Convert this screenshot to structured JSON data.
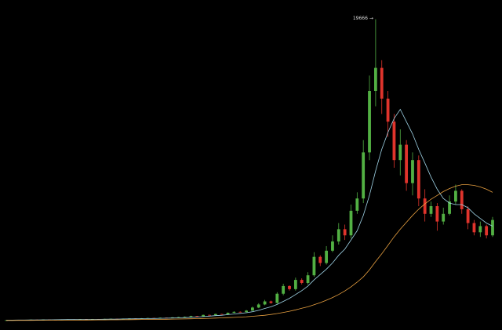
{
  "chart_data": {
    "type": "candlestick",
    "annotation": "19666 →",
    "up_color": "#52b043",
    "down_color": "#e0342c",
    "ylim": [
      0,
      20000
    ],
    "open": [
      75,
      80,
      90,
      85,
      100,
      110,
      105,
      120,
      115,
      110,
      125,
      130,
      125,
      140,
      135,
      150,
      145,
      160,
      170,
      165,
      180,
      190,
      185,
      200,
      220,
      210,
      240,
      230,
      260,
      280,
      300,
      350,
      330,
      420,
      400,
      480,
      450,
      560,
      620,
      600,
      700,
      900,
      1100,
      1300,
      1200,
      1800,
      2300,
      2100,
      2700,
      2500,
      3000,
      4200,
      3800,
      4600,
      5200,
      6000,
      5600,
      7200,
      8000,
      11000,
      15000,
      16500,
      14500,
      13000,
      10500,
      11500,
      9000,
      10500,
      8000,
      7000,
      7500,
      6500,
      7000,
      7800,
      8500,
      7300,
      6400,
      5800,
      6200,
      5600
    ],
    "high": [
      85,
      95,
      95,
      105,
      115,
      115,
      125,
      125,
      120,
      130,
      135,
      135,
      145,
      145,
      155,
      155,
      165,
      180,
      175,
      185,
      200,
      195,
      210,
      230,
      230,
      250,
      250,
      270,
      300,
      320,
      370,
      360,
      440,
      440,
      500,
      490,
      580,
      660,
      650,
      740,
      960,
      1180,
      1400,
      1350,
      1900,
      2450,
      2350,
      2850,
      2800,
      3200,
      4500,
      4300,
      4900,
      5600,
      6400,
      6300,
      7600,
      8400,
      11800,
      16000,
      19666,
      17000,
      15000,
      13500,
      12500,
      11800,
      11000,
      10800,
      8600,
      7800,
      7700,
      7400,
      8200,
      8900,
      8600,
      7500,
      6600,
      6500,
      6300,
      6800
    ],
    "low": [
      70,
      75,
      80,
      80,
      95,
      100,
      100,
      110,
      105,
      105,
      120,
      120,
      120,
      130,
      130,
      140,
      140,
      155,
      160,
      160,
      175,
      180,
      180,
      195,
      200,
      200,
      220,
      225,
      250,
      270,
      290,
      320,
      320,
      390,
      390,
      440,
      440,
      540,
      580,
      590,
      680,
      860,
      1050,
      1150,
      1150,
      1700,
      2000,
      2000,
      2400,
      2400,
      2900,
      3600,
      3700,
      4500,
      5000,
      5300,
      5400,
      7000,
      7700,
      10500,
      14000,
      13500,
      12000,
      10000,
      9500,
      8500,
      8200,
      7500,
      6500,
      6800,
      5900,
      6300,
      6900,
      7600,
      7000,
      6000,
      5600,
      5500,
      5400,
      5500
    ],
    "close": [
      80,
      90,
      85,
      100,
      110,
      105,
      120,
      115,
      110,
      125,
      130,
      125,
      140,
      135,
      150,
      145,
      160,
      170,
      165,
      180,
      190,
      185,
      200,
      220,
      210,
      240,
      230,
      260,
      280,
      300,
      350,
      330,
      420,
      400,
      480,
      450,
      560,
      620,
      600,
      700,
      900,
      1100,
      1300,
      1200,
      1800,
      2300,
      2100,
      2700,
      2500,
      3000,
      4200,
      3800,
      4600,
      5200,
      6000,
      5600,
      7200,
      8000,
      11000,
      15000,
      16500,
      14500,
      13000,
      10500,
      11500,
      9000,
      10500,
      8000,
      7000,
      7500,
      6500,
      7000,
      7800,
      8500,
      7300,
      6400,
      5800,
      6200,
      5600,
      6600
    ],
    "lines": [
      {
        "color": "#9fd3e6",
        "values": [
          80,
          82,
          85,
          88,
          92,
          96,
          100,
          104,
          108,
          112,
          115,
          118,
          122,
          126,
          130,
          135,
          140,
          146,
          150,
          156,
          162,
          168,
          174,
          182,
          190,
          198,
          208,
          218,
          228,
          245,
          265,
          285,
          310,
          340,
          370,
          400,
          440,
          480,
          520,
          560,
          630,
          720,
          840,
          950,
          1100,
          1300,
          1500,
          1750,
          2000,
          2300,
          2700,
          3050,
          3400,
          3800,
          4300,
          4700,
          5300,
          5900,
          6900,
          8200,
          9800,
          11200,
          12300,
          13200,
          13800,
          13000,
          12200,
          11200,
          10300,
          9400,
          8600,
          8000,
          7700,
          7600,
          7600,
          7400,
          7000,
          6700,
          6400,
          6200
        ]
      },
      {
        "color": "#e8a040",
        "values": [
          60,
          62,
          64,
          66,
          68,
          70,
          72,
          74,
          76,
          78,
          80,
          83,
          86,
          89,
          92,
          95,
          98,
          101,
          104,
          108,
          112,
          116,
          120,
          125,
          130,
          135,
          140,
          146,
          152,
          160,
          170,
          180,
          190,
          200,
          215,
          230,
          245,
          260,
          280,
          300,
          330,
          360,
          400,
          450,
          510,
          580,
          660,
          750,
          850,
          950,
          1080,
          1220,
          1380,
          1550,
          1750,
          1980,
          2250,
          2550,
          2900,
          3350,
          3900,
          4400,
          4950,
          5500,
          6000,
          6450,
          6900,
          7300,
          7650,
          7950,
          8200,
          8450,
          8650,
          8800,
          8900,
          8900,
          8850,
          8750,
          8600,
          8400
        ]
      }
    ]
  }
}
